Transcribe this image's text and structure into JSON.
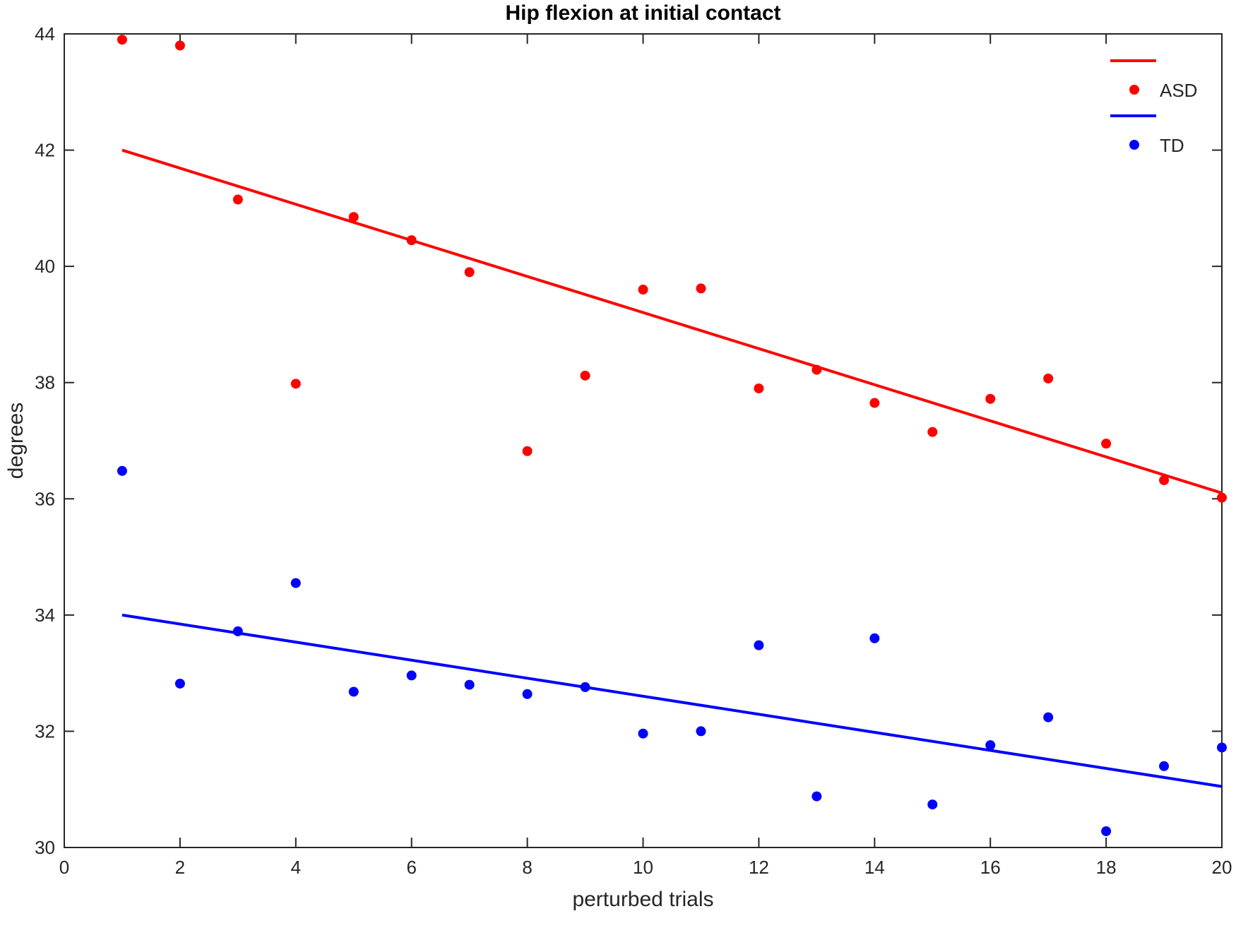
{
  "chart_data": {
    "type": "scatter",
    "title": "Hip flexion at initial contact",
    "xlabel": "perturbed trials",
    "ylabel": "degrees",
    "xlim": [
      0,
      20
    ],
    "ylim": [
      30,
      44
    ],
    "xticks": [
      0,
      2,
      4,
      6,
      8,
      10,
      12,
      14,
      16,
      18,
      20
    ],
    "yticks": [
      30,
      32,
      34,
      36,
      38,
      40,
      42,
      44
    ],
    "grid": false,
    "legend_position": "top-right",
    "series": [
      {
        "name": "ASD",
        "color": "#ff0000",
        "x": [
          1,
          2,
          3,
          4,
          5,
          6,
          7,
          8,
          9,
          10,
          11,
          12,
          13,
          14,
          15,
          16,
          17,
          18,
          19,
          20
        ],
        "y": [
          43.9,
          43.8,
          41.15,
          37.98,
          40.85,
          40.45,
          39.9,
          36.82,
          38.12,
          39.6,
          39.62,
          37.9,
          38.22,
          37.65,
          37.15,
          37.72,
          38.07,
          36.95,
          36.32,
          36.02
        ],
        "trend": {
          "x": [
            1,
            20
          ],
          "y": [
            42.0,
            36.1
          ]
        }
      },
      {
        "name": "TD",
        "color": "#0000ff",
        "x": [
          1,
          2,
          3,
          4,
          5,
          6,
          7,
          8,
          9,
          10,
          11,
          12,
          13,
          14,
          15,
          16,
          17,
          18,
          19,
          20
        ],
        "y": [
          36.48,
          32.82,
          33.72,
          34.55,
          32.68,
          32.96,
          32.8,
          32.64,
          32.76,
          31.96,
          32.0,
          33.48,
          30.88,
          33.6,
          30.74,
          31.76,
          32.24,
          30.28,
          31.4,
          31.72
        ],
        "trend": {
          "x": [
            1,
            20
          ],
          "y": [
            34.0,
            31.05
          ]
        }
      }
    ]
  }
}
